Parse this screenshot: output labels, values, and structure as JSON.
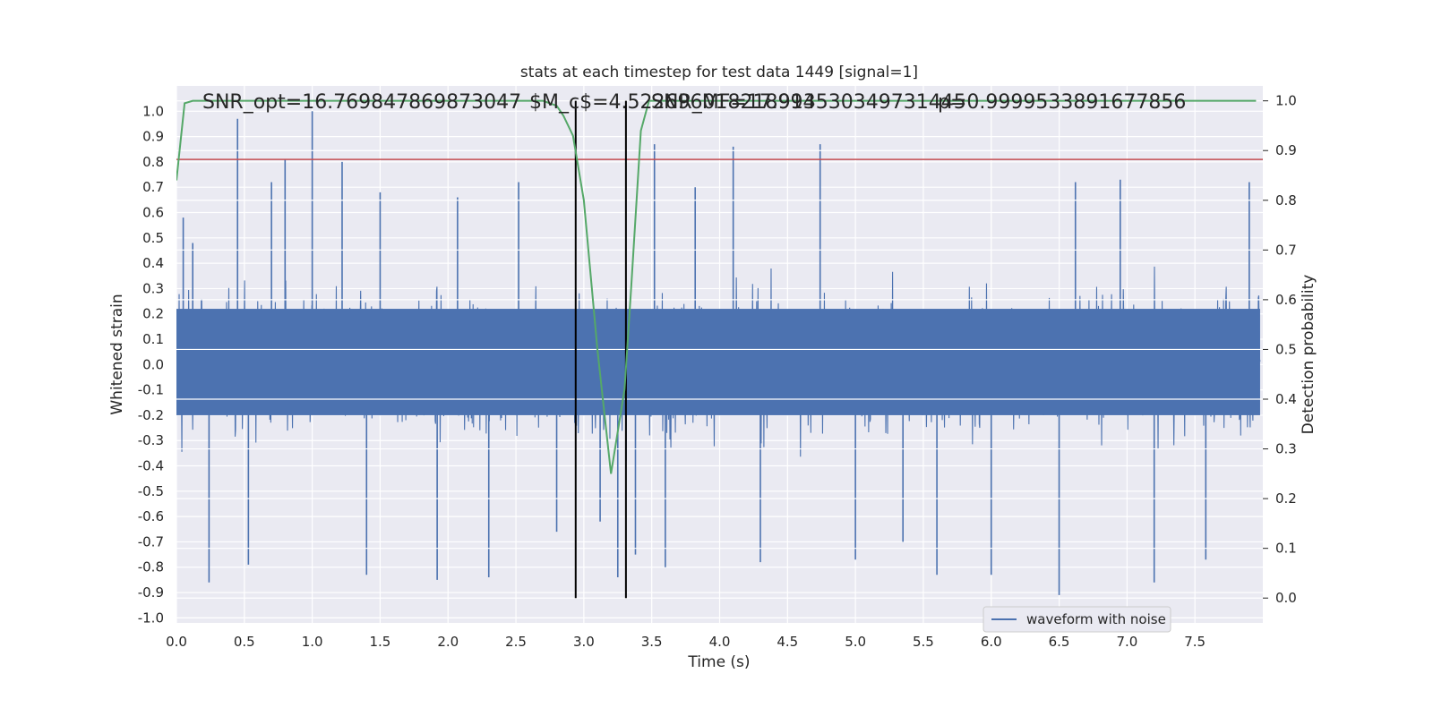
{
  "chart_data": {
    "type": "line",
    "title": "stats at each timestep for test data 1449 [signal=1]",
    "xlabel": "Time (s)",
    "ylabel": "Whitened strain",
    "ylabel_right": "Detection probability",
    "xlim": [
      0,
      8
    ],
    "ylim": [
      -1.02,
      1.1
    ],
    "ylim_right": [
      -0.05,
      1.03
    ],
    "x_ticks": [
      "0.0",
      "0.5",
      "1.0",
      "1.5",
      "2.0",
      "2.5",
      "3.0",
      "3.5",
      "4.0",
      "4.5",
      "5.0",
      "5.5",
      "6.0",
      "6.5",
      "7.0",
      "7.5"
    ],
    "y_ticks": [
      "-1.0",
      "-0.9",
      "-0.8",
      "-0.7",
      "-0.6",
      "-0.5",
      "-0.4",
      "-0.3",
      "-0.2",
      "-0.1",
      "0.0",
      "0.1",
      "0.2",
      "0.3",
      "0.4",
      "0.5",
      "0.6",
      "0.7",
      "0.8",
      "0.9",
      "1.0"
    ],
    "y_right_ticks": [
      "0.0",
      "0.1",
      "0.2",
      "0.3",
      "0.4",
      "0.5",
      "0.6",
      "0.7",
      "0.8",
      "0.9",
      "1.0"
    ],
    "grid": true,
    "legend_position": "bottom-right",
    "annotations": [
      "SNR_opt=16.769847869873047",
      "$M_c$=4.522696018218994",
      "SNR_MF=17.913530349731445",
      "p=0.9999533891677856"
    ],
    "series": [
      {
        "name": "waveform with noise",
        "axis": "left",
        "color": "#4c72b0",
        "description_values": "dense noisy strain trace, mostly within +/-0.5, peaks near +/-1",
        "spikes": [
          [
            0.05,
            0.58
          ],
          [
            0.12,
            0.48
          ],
          [
            0.24,
            -0.86
          ],
          [
            0.45,
            0.97
          ],
          [
            0.53,
            -0.79
          ],
          [
            0.7,
            0.72
          ],
          [
            0.8,
            0.81
          ],
          [
            1.0,
            1.0
          ],
          [
            1.22,
            0.8
          ],
          [
            1.4,
            -0.83
          ],
          [
            1.5,
            0.68
          ],
          [
            1.92,
            -0.85
          ],
          [
            2.07,
            0.66
          ],
          [
            2.3,
            -0.84
          ],
          [
            2.52,
            0.72
          ],
          [
            2.8,
            -0.66
          ],
          [
            3.12,
            -0.62
          ],
          [
            3.25,
            -0.84
          ],
          [
            3.38,
            -0.75
          ],
          [
            3.52,
            0.87
          ],
          [
            3.6,
            -0.8
          ],
          [
            3.82,
            0.7
          ],
          [
            4.1,
            0.86
          ],
          [
            4.3,
            -0.78
          ],
          [
            4.74,
            0.87
          ],
          [
            5.0,
            -0.77
          ],
          [
            5.35,
            -0.7
          ],
          [
            5.6,
            -0.83
          ],
          [
            6.0,
            -0.83
          ],
          [
            6.5,
            -0.91
          ],
          [
            6.62,
            0.72
          ],
          [
            6.95,
            0.73
          ],
          [
            7.2,
            -0.86
          ],
          [
            7.58,
            -0.77
          ],
          [
            7.9,
            0.72
          ]
        ]
      },
      {
        "name": "",
        "axis": "right",
        "color": "#55a868",
        "x": [
          0.0,
          0.06,
          0.12,
          0.5,
          1.0,
          1.5,
          2.0,
          2.5,
          2.7,
          2.8,
          2.85,
          2.92,
          3.0,
          3.1,
          3.2,
          3.3,
          3.35,
          3.42,
          3.48,
          4.0,
          5.0,
          6.0,
          7.0,
          7.95
        ],
        "y": [
          0.84,
          0.995,
          1.0,
          1.0,
          1.0,
          1.0,
          1.0,
          1.0,
          1.0,
          0.99,
          0.97,
          0.93,
          0.8,
          0.5,
          0.25,
          0.42,
          0.63,
          0.94,
          1.0,
          1.0,
          1.0,
          1.0,
          1.0,
          1.0
        ]
      }
    ],
    "hlines": [
      {
        "y": 0.81,
        "axis": "left",
        "color": "#c44e52"
      }
    ],
    "vlines": [
      {
        "x": 2.94,
        "color": "#000000"
      },
      {
        "x": 3.31,
        "color": "#000000"
      }
    ]
  }
}
